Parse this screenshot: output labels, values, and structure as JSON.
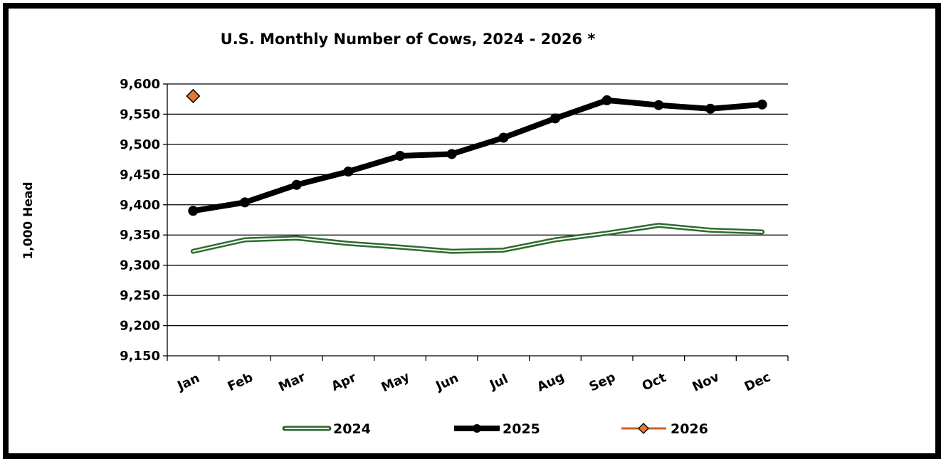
{
  "chart_data": {
    "type": "line",
    "title": "U.S. Monthly Number of Cows, 2024 - 2026 *",
    "ylabel": "1,000 Head",
    "xlabel": "",
    "categories": [
      "Jan",
      "Feb",
      "Mar",
      "Apr",
      "May",
      "Jun",
      "Jul",
      "Aug",
      "Sep",
      "Oct",
      "Nov",
      "Dec"
    ],
    "ylim": [
      9150,
      9600
    ],
    "yticks": [
      9150,
      9200,
      9250,
      9300,
      9350,
      9400,
      9450,
      9500,
      9550,
      9600
    ],
    "ytick_labels": [
      "9,150",
      "9,200",
      "9,250",
      "9,300",
      "9,350",
      "9,400",
      "9,450",
      "9,500",
      "9,550",
      "9,600"
    ],
    "grid": true,
    "legend_position": "bottom",
    "series": [
      {
        "name": "2024",
        "color": "#2e6b2e",
        "style": "double-line",
        "values": [
          9323,
          9342,
          9345,
          9336,
          9330,
          9323,
          9325,
          9342,
          9353,
          9366,
          9358,
          9355
        ]
      },
      {
        "name": "2025",
        "color": "#000000",
        "style": "thick-line-circle",
        "values": [
          9390,
          9404,
          9433,
          9455,
          9481,
          9484,
          9511,
          9543,
          9573,
          9565,
          9559,
          9566
        ]
      },
      {
        "name": "2026",
        "color": "#e07a35",
        "style": "diamond",
        "values": [
          9580,
          null,
          null,
          null,
          null,
          null,
          null,
          null,
          null,
          null,
          null,
          null
        ]
      }
    ]
  }
}
